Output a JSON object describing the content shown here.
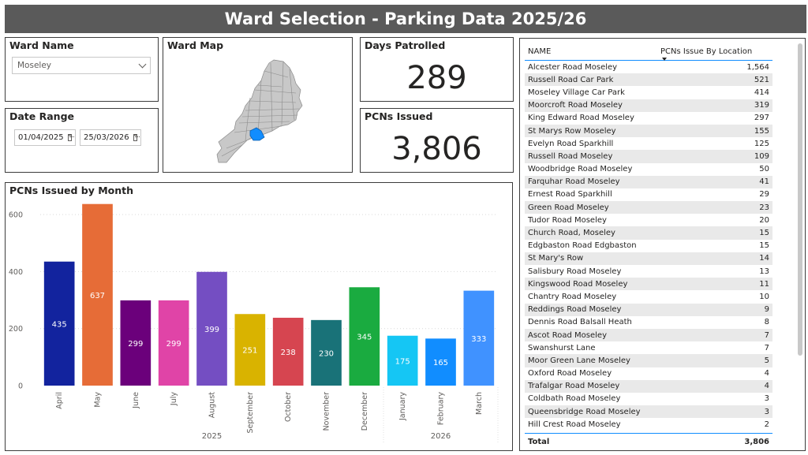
{
  "title": "Ward Selection - Parking Data 2025/26",
  "ward_name": {
    "label": "Ward Name",
    "value": "Moseley"
  },
  "date_range": {
    "label": "Date Range",
    "start": "01/04/2025",
    "end": "25/03/2026"
  },
  "ward_map": {
    "label": "Ward Map"
  },
  "days_patrolled": {
    "label": "Days Patrolled",
    "value": "289"
  },
  "pcns_issued": {
    "label": "PCNs Issued",
    "value": "3,806"
  },
  "table": {
    "col_name": "NAME",
    "col_value": "PCNs Issue By Location",
    "rows": [
      {
        "name": "Alcester Road Moseley",
        "value": "1,564"
      },
      {
        "name": "Russell Road Car Park",
        "value": "521"
      },
      {
        "name": "Moseley Village Car Park",
        "value": "414"
      },
      {
        "name": "Moorcroft Road Moseley",
        "value": "319"
      },
      {
        "name": "King Edward Road Moseley",
        "value": "297"
      },
      {
        "name": "St Marys Row Moseley",
        "value": "155"
      },
      {
        "name": "Evelyn Road Sparkhill",
        "value": "125"
      },
      {
        "name": "Russell Road Moseley",
        "value": "109"
      },
      {
        "name": "Woodbridge Road Moseley",
        "value": "50"
      },
      {
        "name": "Farquhar Road Moseley",
        "value": "41"
      },
      {
        "name": "Ernest Road Sparkhill",
        "value": "29"
      },
      {
        "name": "Green Road Moseley",
        "value": "23"
      },
      {
        "name": "Tudor Road Moseley",
        "value": "20"
      },
      {
        "name": "Church Road, Moseley",
        "value": "15"
      },
      {
        "name": "Edgbaston Road Edgbaston",
        "value": "15"
      },
      {
        "name": "St Mary's Row",
        "value": "14"
      },
      {
        "name": "Salisbury Road Moseley",
        "value": "13"
      },
      {
        "name": "Kingswood Road Moseley",
        "value": "11"
      },
      {
        "name": "Chantry Road Moseley",
        "value": "10"
      },
      {
        "name": "Reddings Road Moseley",
        "value": "9"
      },
      {
        "name": "Dennis Road Balsall Heath",
        "value": "8"
      },
      {
        "name": "Ascot Road Moseley",
        "value": "7"
      },
      {
        "name": "Swanshurst Lane",
        "value": "7"
      },
      {
        "name": "Moor Green Lane Moseley",
        "value": "5"
      },
      {
        "name": "Oxford Road Moseley",
        "value": "4"
      },
      {
        "name": "Trafalgar Road Moseley",
        "value": "4"
      },
      {
        "name": "Coldbath Road Moseley",
        "value": "3"
      },
      {
        "name": "Queensbridge Road Moseley",
        "value": "3"
      },
      {
        "name": "Hill Crest Road Moseley",
        "value": "2"
      }
    ],
    "total_label": "Total",
    "total_value": "3,806"
  },
  "chart_data": {
    "type": "bar",
    "title": "PCNs Issued by Month",
    "categories": [
      "April",
      "May",
      "June",
      "July",
      "August",
      "September",
      "October",
      "November",
      "December",
      "January",
      "February",
      "March"
    ],
    "values": [
      435,
      637,
      299,
      299,
      399,
      251,
      238,
      230,
      345,
      175,
      165,
      333
    ],
    "colors": [
      "#12239e",
      "#e66c37",
      "#6b007b",
      "#e044a7",
      "#744ec2",
      "#d9b300",
      "#d64550",
      "#197278",
      "#1aab40",
      "#15c6f4",
      "#118dff",
      "#4092ff"
    ],
    "year_groups": [
      {
        "label": "2025",
        "count": 9
      },
      {
        "label": "2026",
        "count": 3
      }
    ],
    "y_ticks": [
      0,
      200,
      400,
      600
    ],
    "ylim": [
      0,
      650
    ],
    "grid": true,
    "data_labels": true
  }
}
